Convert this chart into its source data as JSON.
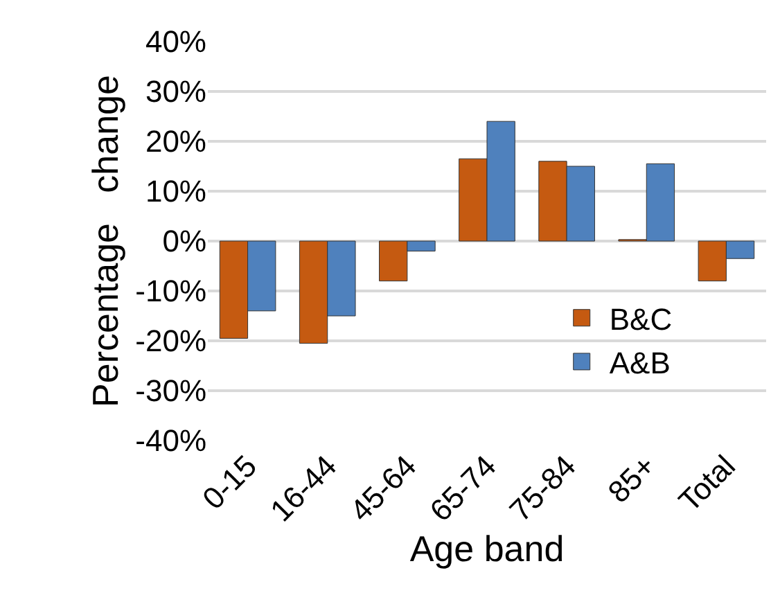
{
  "chart_data": {
    "type": "bar",
    "xlabel": "Age band",
    "ylabel": "Percentage   change",
    "categories": [
      "0-15",
      "16-44",
      "45-64",
      "65-74",
      "75-84",
      "85+",
      "Total"
    ],
    "series": [
      {
        "name": "B&C",
        "color": "#c55a11",
        "values": [
          -19.5,
          -20.5,
          -8,
          16.5,
          16,
          0.3,
          -8
        ]
      },
      {
        "name": "A&B",
        "color": "#4f81bd",
        "values": [
          -14,
          -15,
          -2,
          24,
          15,
          15.5,
          -3.5
        ]
      }
    ],
    "ylim": [
      -40,
      40
    ],
    "yticks": [
      {
        "value": -40,
        "label": "-40%"
      },
      {
        "value": -30,
        "label": "-30%"
      },
      {
        "value": -20,
        "label": "-20%"
      },
      {
        "value": -10,
        "label": "-10%"
      },
      {
        "value": 0,
        "label": "0%"
      },
      {
        "value": 10,
        "label": "10%"
      },
      {
        "value": 20,
        "label": "20%"
      },
      {
        "value": 30,
        "label": "30%"
      },
      {
        "value": 40,
        "label": "40%"
      }
    ],
    "grid": "y",
    "legend": "bottom right"
  }
}
